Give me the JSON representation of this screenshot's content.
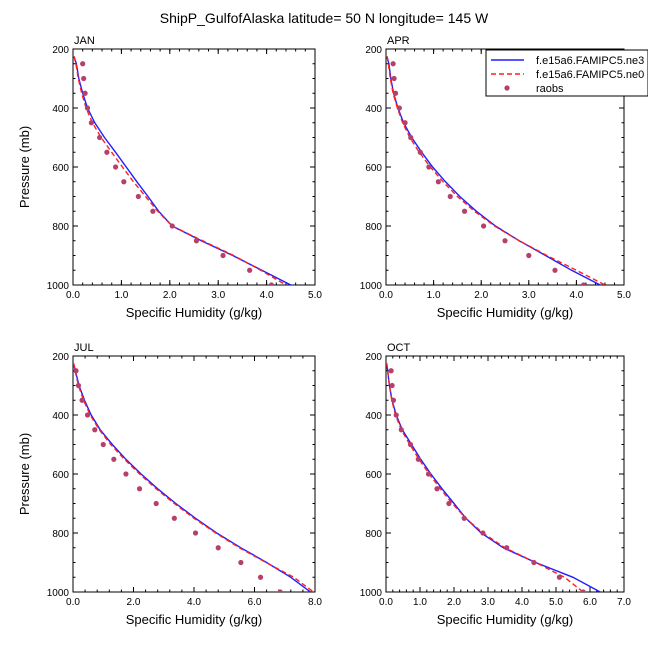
{
  "figure": {
    "title": "ShipP_GulfofAlaska  latitude= 50 N longitude= 145 W"
  },
  "legend": {
    "placement": "top-right of APR panel",
    "entries": [
      {
        "label": "f.e15a6.FAMIPC5.ne3",
        "style": "solid",
        "color": "#1f1fff"
      },
      {
        "label": "f.e15a6.FAMIPC5.ne0",
        "style": "dashed",
        "color": "#ff1f1f"
      },
      {
        "label": "raobs",
        "style": "dot",
        "color": "#b5406b"
      }
    ]
  },
  "chart_data": [
    {
      "type": "line",
      "panel": "JAN",
      "xlabel": "Specific Humidity (g/kg)",
      "ylabel": "Pressure (mb)",
      "xlim": [
        0,
        5
      ],
      "xticks": [
        "0.0",
        "1.0",
        "2.0",
        "3.0",
        "4.0",
        "5.0"
      ],
      "ylim": [
        200,
        1000
      ],
      "yticks": [
        "200",
        "400",
        "600",
        "800",
        "1000"
      ],
      "y_inverted": true,
      "series": [
        {
          "name": "f.e15a6.FAMIPC5.ne3",
          "style": "solid",
          "color": "#1f1fff",
          "points": [
            [
              0.02,
              225
            ],
            [
              0.07,
              250
            ],
            [
              0.12,
              300
            ],
            [
              0.2,
              350
            ],
            [
              0.3,
              400
            ],
            [
              0.45,
              450
            ],
            [
              0.65,
              500
            ],
            [
              0.88,
              550
            ],
            [
              1.1,
              600
            ],
            [
              1.32,
              650
            ],
            [
              1.55,
              700
            ],
            [
              1.77,
              750
            ],
            [
              2.05,
              800
            ],
            [
              2.65,
              850
            ],
            [
              3.3,
              900
            ],
            [
              3.9,
              950
            ],
            [
              4.5,
              1000
            ]
          ]
        },
        {
          "name": "f.e15a6.FAMIPC5.ne0",
          "style": "dashed",
          "color": "#ff1f1f",
          "points": [
            [
              0.02,
              225
            ],
            [
              0.06,
              250
            ],
            [
              0.11,
              300
            ],
            [
              0.18,
              350
            ],
            [
              0.27,
              400
            ],
            [
              0.4,
              450
            ],
            [
              0.58,
              500
            ],
            [
              0.8,
              550
            ],
            [
              1.02,
              600
            ],
            [
              1.25,
              650
            ],
            [
              1.5,
              700
            ],
            [
              1.75,
              750
            ],
            [
              2.05,
              800
            ],
            [
              2.68,
              850
            ],
            [
              3.32,
              900
            ],
            [
              3.88,
              950
            ],
            [
              4.4,
              1000
            ]
          ]
        },
        {
          "name": "raobs",
          "style": "dot",
          "color": "#b5406b",
          "points": [
            [
              0.2,
              250
            ],
            [
              0.22,
              300
            ],
            [
              0.25,
              350
            ],
            [
              0.3,
              400
            ],
            [
              0.38,
              450
            ],
            [
              0.55,
              500
            ],
            [
              0.7,
              550
            ],
            [
              0.88,
              600
            ],
            [
              1.05,
              650
            ],
            [
              1.35,
              700
            ],
            [
              1.65,
              750
            ],
            [
              2.05,
              800
            ],
            [
              2.55,
              850
            ],
            [
              3.1,
              900
            ],
            [
              3.65,
              950
            ],
            [
              4.1,
              1000
            ]
          ]
        }
      ]
    },
    {
      "type": "line",
      "panel": "APR",
      "xlabel": "Specific Humidity (g/kg)",
      "ylabel": "",
      "xlim": [
        0,
        5
      ],
      "xticks": [
        "0.0",
        "1.0",
        "2.0",
        "3.0",
        "4.0",
        "5.0"
      ],
      "ylim": [
        200,
        1000
      ],
      "yticks": [
        "200",
        "400",
        "600",
        "800",
        "1000"
      ],
      "y_inverted": true,
      "series": [
        {
          "name": "f.e15a6.FAMIPC5.ne3",
          "style": "solid",
          "color": "#1f1fff",
          "points": [
            [
              0.02,
              225
            ],
            [
              0.06,
              250
            ],
            [
              0.1,
              300
            ],
            [
              0.16,
              350
            ],
            [
              0.25,
              400
            ],
            [
              0.37,
              450
            ],
            [
              0.54,
              500
            ],
            [
              0.75,
              550
            ],
            [
              0.98,
              600
            ],
            [
              1.25,
              650
            ],
            [
              1.55,
              700
            ],
            [
              1.9,
              750
            ],
            [
              2.3,
              800
            ],
            [
              2.8,
              850
            ],
            [
              3.35,
              900
            ],
            [
              3.9,
              950
            ],
            [
              4.5,
              1000
            ]
          ]
        },
        {
          "name": "f.e15a6.FAMIPC5.ne0",
          "style": "dashed",
          "color": "#ff1f1f",
          "points": [
            [
              0.02,
              225
            ],
            [
              0.05,
              250
            ],
            [
              0.09,
              300
            ],
            [
              0.15,
              350
            ],
            [
              0.24,
              400
            ],
            [
              0.35,
              450
            ],
            [
              0.5,
              500
            ],
            [
              0.7,
              550
            ],
            [
              0.93,
              600
            ],
            [
              1.2,
              650
            ],
            [
              1.5,
              700
            ],
            [
              1.86,
              750
            ],
            [
              2.28,
              800
            ],
            [
              2.8,
              850
            ],
            [
              3.38,
              900
            ],
            [
              4.0,
              950
            ],
            [
              4.6,
              1000
            ]
          ]
        },
        {
          "name": "raobs",
          "style": "dot",
          "color": "#b5406b",
          "points": [
            [
              0.15,
              250
            ],
            [
              0.17,
              300
            ],
            [
              0.2,
              350
            ],
            [
              0.28,
              400
            ],
            [
              0.4,
              450
            ],
            [
              0.52,
              500
            ],
            [
              0.72,
              550
            ],
            [
              0.9,
              600
            ],
            [
              1.1,
              650
            ],
            [
              1.35,
              700
            ],
            [
              1.65,
              750
            ],
            [
              2.05,
              800
            ],
            [
              2.5,
              850
            ],
            [
              3.0,
              900
            ],
            [
              3.55,
              950
            ],
            [
              4.15,
              1000
            ]
          ]
        }
      ]
    },
    {
      "type": "line",
      "panel": "JUL",
      "xlabel": "Specific Humidity (g/kg)",
      "ylabel": "Pressure (mb)",
      "xlim": [
        0,
        8
      ],
      "xticks": [
        "0.0",
        "2.0",
        "4.0",
        "6.0",
        "8.0"
      ],
      "ylim": [
        200,
        1000
      ],
      "yticks": [
        "200",
        "400",
        "600",
        "800",
        "1000"
      ],
      "y_inverted": true,
      "series": [
        {
          "name": "f.e15a6.FAMIPC5.ne3",
          "style": "solid",
          "color": "#1f1fff",
          "points": [
            [
              0.02,
              225
            ],
            [
              0.08,
              250
            ],
            [
              0.2,
              300
            ],
            [
              0.38,
              350
            ],
            [
              0.6,
              400
            ],
            [
              0.9,
              450
            ],
            [
              1.3,
              500
            ],
            [
              1.75,
              550
            ],
            [
              2.25,
              600
            ],
            [
              2.8,
              650
            ],
            [
              3.4,
              700
            ],
            [
              4.05,
              750
            ],
            [
              4.75,
              800
            ],
            [
              5.55,
              850
            ],
            [
              6.4,
              900
            ],
            [
              7.2,
              950
            ],
            [
              7.85,
              1000
            ]
          ]
        },
        {
          "name": "f.e15a6.FAMIPC5.ne0",
          "style": "dashed",
          "color": "#ff1f1f",
          "points": [
            [
              0.02,
              225
            ],
            [
              0.07,
              250
            ],
            [
              0.18,
              300
            ],
            [
              0.35,
              350
            ],
            [
              0.57,
              400
            ],
            [
              0.87,
              450
            ],
            [
              1.25,
              500
            ],
            [
              1.7,
              550
            ],
            [
              2.2,
              600
            ],
            [
              2.75,
              650
            ],
            [
              3.35,
              700
            ],
            [
              4.0,
              750
            ],
            [
              4.72,
              800
            ],
            [
              5.5,
              850
            ],
            [
              6.38,
              900
            ],
            [
              7.3,
              950
            ],
            [
              7.95,
              1000
            ]
          ]
        },
        {
          "name": "raobs",
          "style": "dot",
          "color": "#b5406b",
          "points": [
            [
              0.1,
              250
            ],
            [
              0.18,
              300
            ],
            [
              0.3,
              350
            ],
            [
              0.48,
              400
            ],
            [
              0.72,
              450
            ],
            [
              1.0,
              500
            ],
            [
              1.35,
              550
            ],
            [
              1.75,
              600
            ],
            [
              2.2,
              650
            ],
            [
              2.75,
              700
            ],
            [
              3.35,
              750
            ],
            [
              4.05,
              800
            ],
            [
              4.8,
              850
            ],
            [
              5.55,
              900
            ],
            [
              6.2,
              950
            ],
            [
              6.85,
              1000
            ]
          ]
        }
      ]
    },
    {
      "type": "line",
      "panel": "OCT",
      "xlabel": "Specific Humidity (g/kg)",
      "ylabel": "",
      "xlim": [
        0,
        7
      ],
      "xticks": [
        "0.0",
        "1.0",
        "2.0",
        "3.0",
        "4.0",
        "5.0",
        "6.0",
        "7.0"
      ],
      "ylim": [
        200,
        1000
      ],
      "yticks": [
        "200",
        "400",
        "600",
        "800",
        "1000"
      ],
      "y_inverted": true,
      "series": [
        {
          "name": "f.e15a6.FAMIPC5.ne3",
          "style": "solid",
          "color": "#1f1fff",
          "points": [
            [
              0.02,
              225
            ],
            [
              0.05,
              250
            ],
            [
              0.1,
              300
            ],
            [
              0.18,
              350
            ],
            [
              0.3,
              400
            ],
            [
              0.48,
              450
            ],
            [
              0.75,
              500
            ],
            [
              1.02,
              550
            ],
            [
              1.32,
              600
            ],
            [
              1.65,
              650
            ],
            [
              2.0,
              700
            ],
            [
              2.35,
              750
            ],
            [
              2.8,
              800
            ],
            [
              3.45,
              850
            ],
            [
              4.4,
              900
            ],
            [
              5.5,
              950
            ],
            [
              6.3,
              1000
            ]
          ]
        },
        {
          "name": "f.e15a6.FAMIPC5.ne0",
          "style": "dashed",
          "color": "#ff1f1f",
          "points": [
            [
              0.02,
              225
            ],
            [
              0.05,
              250
            ],
            [
              0.1,
              300
            ],
            [
              0.17,
              350
            ],
            [
              0.28,
              400
            ],
            [
              0.45,
              450
            ],
            [
              0.7,
              500
            ],
            [
              0.97,
              550
            ],
            [
              1.27,
              600
            ],
            [
              1.6,
              650
            ],
            [
              1.95,
              700
            ],
            [
              2.35,
              750
            ],
            [
              2.85,
              800
            ],
            [
              3.5,
              850
            ],
            [
              4.4,
              900
            ],
            [
              5.25,
              950
            ],
            [
              5.8,
              1000
            ]
          ]
        },
        {
          "name": "raobs",
          "style": "dot",
          "color": "#b5406b",
          "points": [
            [
              0.15,
              250
            ],
            [
              0.18,
              300
            ],
            [
              0.22,
              350
            ],
            [
              0.3,
              400
            ],
            [
              0.45,
              450
            ],
            [
              0.72,
              500
            ],
            [
              0.95,
              550
            ],
            [
              1.25,
              600
            ],
            [
              1.5,
              650
            ],
            [
              1.85,
              700
            ],
            [
              2.3,
              750
            ],
            [
              2.85,
              800
            ],
            [
              3.55,
              850
            ],
            [
              4.35,
              900
            ],
            [
              5.1,
              950
            ],
            [
              5.8,
              1000
            ]
          ]
        }
      ]
    }
  ]
}
